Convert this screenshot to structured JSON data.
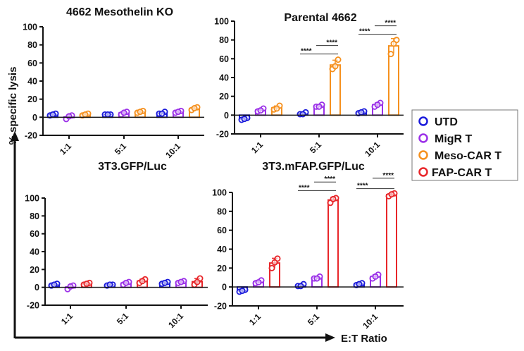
{
  "colors": {
    "UTD": "#1a1adb",
    "MigR T": "#9b30e8",
    "Meso-CAR T": "#f5901e",
    "FAP-CAR T": "#e8262a",
    "axis": "#111111"
  },
  "ylabel": "% specific lysis",
  "xlabel": "E:T Ratio",
  "legend": {
    "placement": "right",
    "entries": [
      "UTD",
      "MigR T",
      "Meso-CAR T",
      "FAP-CAR T"
    ]
  },
  "chart_data": [
    {
      "type": "bar",
      "title": "4662 Mesothelin KO",
      "categories": [
        "1:1",
        "5:1",
        "10:1"
      ],
      "ylim": [
        -20,
        100
      ],
      "yticks": [
        "-20",
        "0",
        "20",
        "40",
        "60",
        "80",
        "100"
      ],
      "series": [
        {
          "name": "UTD",
          "points": [
            [
              2,
              4,
              3
            ],
            [
              3,
              3,
              3
            ],
            [
              4,
              6,
              4
            ]
          ]
        },
        {
          "name": "MigR T",
          "points": [
            [
              -2,
              2,
              1
            ],
            [
              3,
              6,
              5
            ],
            [
              5,
              7,
              6
            ]
          ]
        },
        {
          "name": "Meso-CAR T",
          "points": [
            [
              2,
              4,
              3
            ],
            [
              5,
              7,
              6
            ],
            [
              8,
              11,
              10
            ]
          ]
        }
      ],
      "significance": []
    },
    {
      "type": "bar",
      "title": "Parental 4662",
      "categories": [
        "1:1",
        "5:1",
        "10:1"
      ],
      "ylim": [
        -20,
        100
      ],
      "yticks": [
        "-20",
        "0",
        "20",
        "40",
        "60",
        "80",
        "100"
      ],
      "series": [
        {
          "name": "UTD",
          "points": [
            [
              -5,
              -3,
              -4
            ],
            [
              1,
              3,
              1
            ],
            [
              2,
              4,
              3
            ]
          ]
        },
        {
          "name": "MigR T",
          "points": [
            [
              4,
              7,
              5
            ],
            [
              9,
              11,
              9
            ],
            [
              9,
              13,
              11
            ]
          ]
        },
        {
          "name": "Meso-CAR T",
          "points": [
            [
              6,
              10,
              7
            ],
            [
              49,
              59,
              52
            ],
            [
              65,
              80,
              76
            ]
          ]
        }
      ],
      "significance": [
        {
          "category": "5:1",
          "from": "UTD",
          "to": "Meso-CAR T",
          "y": 65,
          "label": "****"
        },
        {
          "category": "5:1",
          "from": "MigR T",
          "to": "Meso-CAR T",
          "y": 74,
          "label": "****"
        },
        {
          "category": "10:1",
          "from": "UTD",
          "to": "Meso-CAR T",
          "y": 86,
          "label": "****"
        },
        {
          "category": "10:1",
          "from": "MigR T",
          "to": "Meso-CAR T",
          "y": 95,
          "label": "****"
        }
      ]
    },
    {
      "type": "bar",
      "title": "3T3.GFP/Luc",
      "categories": [
        "1:1",
        "5:1",
        "10:1"
      ],
      "ylim": [
        -20,
        100
      ],
      "yticks": [
        "-20",
        "0",
        "20",
        "40",
        "60",
        "80",
        "100"
      ],
      "series": [
        {
          "name": "UTD",
          "points": [
            [
              2,
              4,
              3
            ],
            [
              2,
              3,
              3
            ],
            [
              4,
              6,
              5
            ]
          ]
        },
        {
          "name": "MigR T",
          "points": [
            [
              -2,
              2,
              1
            ],
            [
              3,
              6,
              5
            ],
            [
              5,
              7,
              6
            ]
          ]
        },
        {
          "name": "FAP-CAR T",
          "points": [
            [
              3,
              5,
              4
            ],
            [
              5,
              9,
              7
            ],
            [
              3,
              10,
              6
            ]
          ]
        }
      ],
      "significance": []
    },
    {
      "type": "bar",
      "title": "3T3.mFAP.GFP/Luc",
      "categories": [
        "1:1",
        "5:1",
        "10:1"
      ],
      "ylim": [
        -20,
        100
      ],
      "yticks": [
        "-20",
        "0",
        "20",
        "40",
        "60",
        "80",
        "100"
      ],
      "series": [
        {
          "name": "UTD",
          "points": [
            [
              -5,
              -3,
              -4
            ],
            [
              1,
              3,
              1
            ],
            [
              2,
              4,
              3
            ]
          ]
        },
        {
          "name": "MigR T",
          "points": [
            [
              4,
              7,
              5
            ],
            [
              9,
              11,
              9
            ],
            [
              9,
              13,
              11
            ]
          ]
        },
        {
          "name": "FAP-CAR T",
          "points": [
            [
              20,
              30,
              26
            ],
            [
              89,
              94,
              93
            ],
            [
              96,
              99,
              98
            ]
          ]
        }
      ],
      "significance": [
        {
          "category": "5:1",
          "from": "UTD",
          "to": "FAP-CAR T",
          "y": 102,
          "label": "****"
        },
        {
          "category": "5:1",
          "from": "MigR T",
          "to": "FAP-CAR T",
          "y": 111,
          "label": "****"
        },
        {
          "category": "10:1",
          "from": "UTD",
          "to": "FAP-CAR T",
          "y": 104,
          "label": "****"
        },
        {
          "category": "10:1",
          "from": "MigR T",
          "to": "FAP-CAR T",
          "y": 115,
          "label": "****"
        }
      ]
    }
  ]
}
